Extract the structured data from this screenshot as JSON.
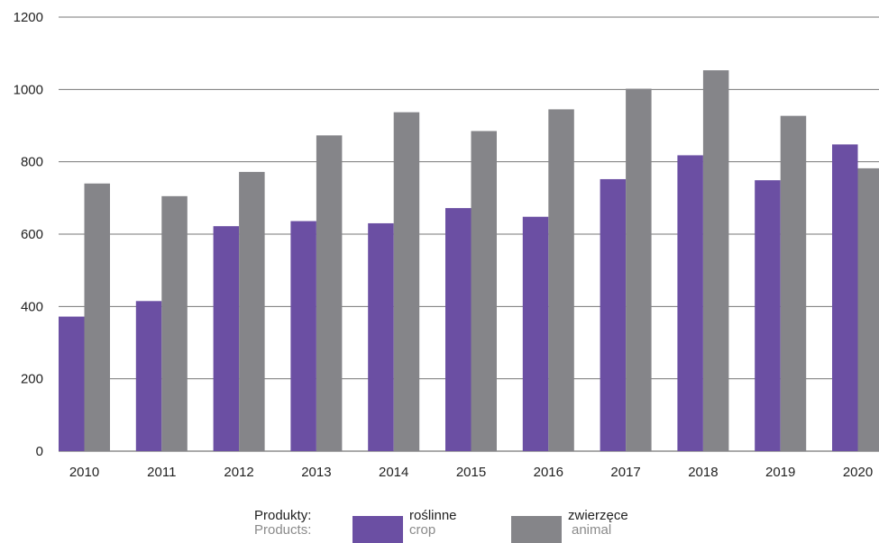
{
  "chart_data": {
    "type": "bar",
    "categories": [
      "2010",
      "2011",
      "2012",
      "2013",
      "2014",
      "2015",
      "2016",
      "2017",
      "2018",
      "2019",
      "2020"
    ],
    "series": [
      {
        "name": "roślinne",
        "name_en": "crop",
        "color": "#6b4fa3",
        "values": [
          372,
          415,
          622,
          636,
          630,
          672,
          648,
          752,
          818,
          749,
          848
        ]
      },
      {
        "name": "zwierzęce",
        "name_en": "animal",
        "color": "#858589",
        "values": [
          740,
          705,
          772,
          873,
          937,
          885,
          945,
          1002,
          1053,
          927,
          782
        ]
      }
    ],
    "ylim": [
      0,
      1200
    ],
    "yticks": [
      0,
      200,
      400,
      600,
      800,
      1000,
      1200
    ],
    "grid": true,
    "legend_position": "bottom"
  },
  "legend": {
    "title_pl": "Produkty:",
    "title_en": "Products:"
  }
}
